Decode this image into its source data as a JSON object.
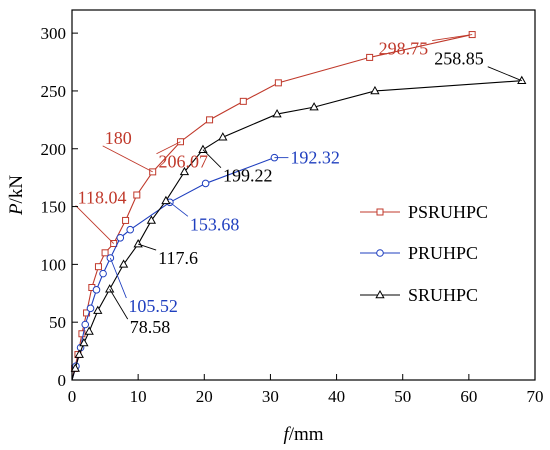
{
  "chart_data": {
    "type": "line",
    "xlabel": {
      "var": "f",
      "unit": "/mm"
    },
    "ylabel": {
      "var": "P",
      "unit": "/kN"
    },
    "xlim": [
      0,
      70
    ],
    "ylim": [
      0,
      320
    ],
    "xticks": [
      0,
      10,
      20,
      30,
      40,
      50,
      60,
      70
    ],
    "yticks": [
      0,
      50,
      100,
      150,
      200,
      250,
      300
    ],
    "grid": false,
    "legend_position": "right",
    "series": [
      {
        "name": "PSRUHPC",
        "color": "#c0392b",
        "marker": "square",
        "x": [
          0,
          0.4,
          0.9,
          1.5,
          2.2,
          3.0,
          4.0,
          5.0,
          6.3,
          8.1,
          9.8,
          12.2,
          16.4,
          20.8,
          25.9,
          31.2,
          45.0,
          60.5
        ],
        "y": [
          0,
          10,
          22,
          40,
          58,
          80,
          98,
          110,
          118.04,
          138,
          160,
          180,
          206.07,
          225,
          241,
          257,
          279,
          298.75
        ]
      },
      {
        "name": "PRUHPC",
        "color": "#1f3fbf",
        "marker": "circle",
        "x": [
          0,
          0.6,
          1.3,
          2.0,
          2.8,
          3.7,
          4.7,
          5.8,
          7.3,
          8.8,
          14.8,
          20.2,
          30.6
        ],
        "y": [
          0,
          12,
          28,
          48,
          62,
          78,
          92,
          105.52,
          123,
          130,
          153.68,
          170,
          192.32
        ]
      },
      {
        "name": "SRUHPC",
        "color": "#000000",
        "marker": "triangle",
        "x": [
          0,
          0.5,
          1.1,
          1.8,
          2.6,
          3.9,
          5.7,
          7.8,
          10.0,
          12.0,
          14.2,
          17.0,
          19.8,
          22.8,
          31.0,
          36.6,
          45.8,
          68.0
        ],
        "y": [
          0,
          10,
          22,
          32,
          42,
          60,
          78.58,
          100,
          117.6,
          138,
          155,
          180,
          199.22,
          210,
          230,
          236,
          250,
          258.85
        ]
      }
    ],
    "annotations": [
      {
        "text": "298.75",
        "series": "PSRUHPC",
        "x": 60.5,
        "y": 298.75
      },
      {
        "text": "206.07",
        "series": "PSRUHPC",
        "x": 16.4,
        "y": 206.07
      },
      {
        "text": "180",
        "series": "PSRUHPC",
        "x": 12.2,
        "y": 180
      },
      {
        "text": "118.04",
        "series": "PSRUHPC",
        "x": 6.3,
        "y": 118.04
      },
      {
        "text": "192.32",
        "series": "PRUHPC",
        "x": 30.6,
        "y": 192.32
      },
      {
        "text": "153.68",
        "series": "PRUHPC",
        "x": 14.8,
        "y": 153.68
      },
      {
        "text": "105.52",
        "series": "PRUHPC",
        "x": 5.8,
        "y": 105.52
      },
      {
        "text": "258.85",
        "series": "SRUHPC",
        "x": 68.0,
        "y": 258.85
      },
      {
        "text": "199.22",
        "series": "SRUHPC",
        "x": 19.8,
        "y": 199.22
      },
      {
        "text": "117.6",
        "series": "SRUHPC",
        "x": 10.0,
        "y": 117.6
      },
      {
        "text": "78.58",
        "series": "SRUHPC",
        "x": 5.7,
        "y": 78.58
      }
    ]
  }
}
